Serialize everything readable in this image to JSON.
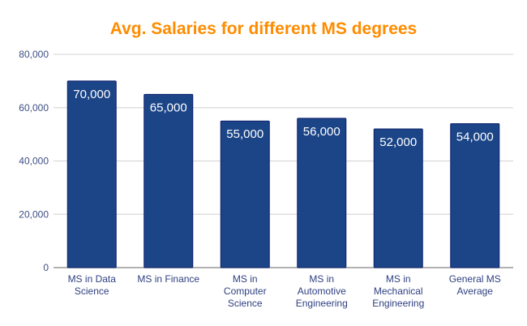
{
  "chart_data": {
    "type": "bar",
    "title": "Avg. Salaries for different MS degrees",
    "xlabel": "",
    "ylabel": "",
    "categories": [
      [
        "MS in Data",
        "Science"
      ],
      [
        "MS in Finance"
      ],
      [
        "MS in",
        "Computer",
        "Science"
      ],
      [
        "MS in",
        "Automotive",
        "Engineering"
      ],
      [
        "MS in",
        "Mechanical",
        "Engineering"
      ],
      [
        "General MS",
        "Average"
      ]
    ],
    "values": [
      70000,
      65000,
      55000,
      56000,
      52000,
      54000
    ],
    "data_labels": [
      "70,000",
      "65,000",
      "55,000",
      "56,000",
      "52,000",
      "54,000"
    ],
    "ylim": [
      0,
      80000
    ],
    "yticks": [
      0,
      20000,
      40000,
      60000,
      80000
    ],
    "ytick_labels": [
      "0",
      "20,000",
      "40,000",
      "60,000",
      "80,000"
    ],
    "grid": true,
    "legend": "none",
    "colors": {
      "bar": "#1c4587",
      "bar_edge": "#0b1f6b",
      "title": "#ff8c00",
      "grid": "#d9d9d9",
      "axis": "#999999"
    }
  }
}
